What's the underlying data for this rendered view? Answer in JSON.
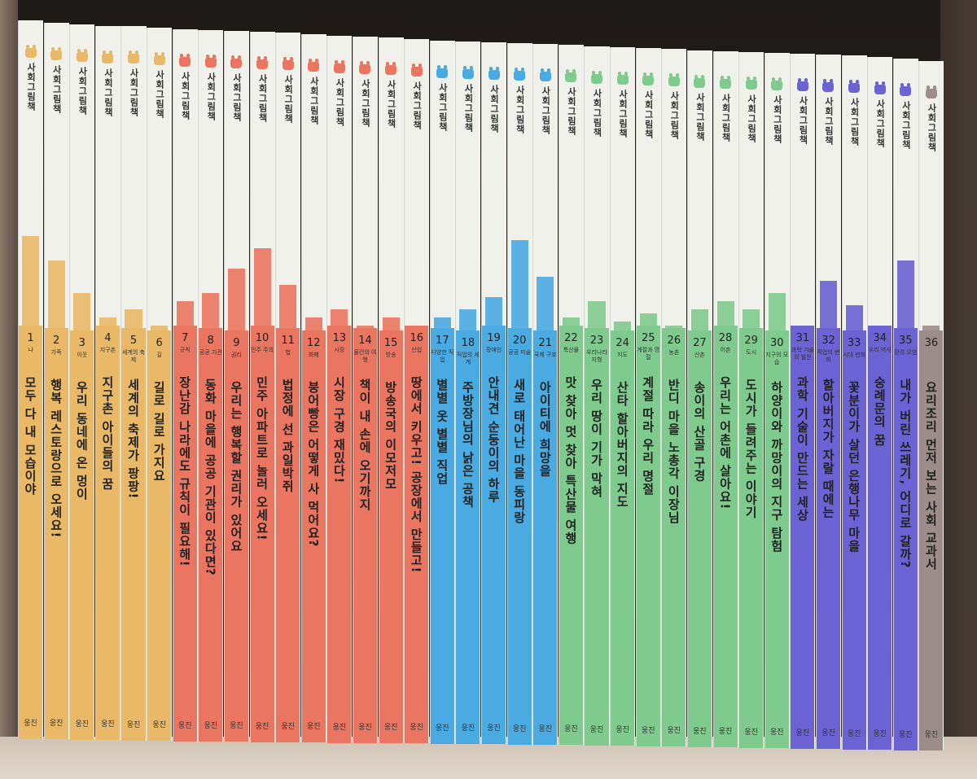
{
  "series_label": "사회그림책",
  "publisher": "웅진",
  "groups": [
    {
      "range": [
        1,
        6
      ],
      "color": "#e9b968"
    },
    {
      "range": [
        7,
        16
      ],
      "color": "#ea7560"
    },
    {
      "range": [
        17,
        21
      ],
      "color": "#4aaae2"
    },
    {
      "range": [
        22,
        30
      ],
      "color": "#7fcb8e"
    },
    {
      "range": [
        31,
        35
      ],
      "color": "#6b62d3"
    },
    {
      "range": [
        36,
        36
      ],
      "color": "#9c8c8a"
    }
  ],
  "books": [
    {
      "number": "1",
      "subject": "나",
      "title": "모두 다 내 모습이야"
    },
    {
      "number": "2",
      "subject": "가족",
      "title": "행복 레스토랑으로 오세요!"
    },
    {
      "number": "3",
      "subject": "이웃",
      "title": "우리 동네에 온 멍이"
    },
    {
      "number": "4",
      "subject": "지구촌",
      "title": "지구촌 아이들의 꿈"
    },
    {
      "number": "5",
      "subject": "세계의 축제",
      "title": "세계의 축제가 팡팡!"
    },
    {
      "number": "6",
      "subject": "길",
      "title": "길로 길로 가지요"
    },
    {
      "number": "7",
      "subject": "규칙",
      "title": "장난감 나라에도 규칙이 필요해!"
    },
    {
      "number": "8",
      "subject": "공공 기관",
      "title": "동화 마을에 공공 기관이 있다면?"
    },
    {
      "number": "9",
      "subject": "권리",
      "title": "우리는 행복할 권리가 있어요"
    },
    {
      "number": "10",
      "subject": "민주 주의",
      "title": "민주 아파트로 놀러 오세요!"
    },
    {
      "number": "11",
      "subject": "법",
      "title": "법정에 선 과일박쥐"
    },
    {
      "number": "12",
      "subject": "화폐",
      "title": "붕어빵은 어떻게 사 먹어요?"
    },
    {
      "number": "13",
      "subject": "시장",
      "title": "시장 구경 재밌다!"
    },
    {
      "number": "14",
      "subject": "물건의 여행",
      "title": "책이 내 손에 오기까지"
    },
    {
      "number": "15",
      "subject": "방송",
      "title": "방송국의 이모저모"
    },
    {
      "number": "16",
      "subject": "산업",
      "title": "땅에서 키우고! 공장에서 만들고!"
    },
    {
      "number": "17",
      "subject": "다양한 직업",
      "title": "별별 옷 별별 직업"
    },
    {
      "number": "18",
      "subject": "직업의 세계",
      "title": "주방장님의 낡은 공책"
    },
    {
      "number": "19",
      "subject": "장애인",
      "title": "안내견 순둥이의 하루"
    },
    {
      "number": "20",
      "subject": "공공 미술",
      "title": "새로 태어난 마을 동피랑"
    },
    {
      "number": "21",
      "subject": "국제 구호",
      "title": "아이티에 희망을"
    },
    {
      "number": "22",
      "subject": "특산물",
      "title": "맛 찾아 멋 찾아 특산물 여행"
    },
    {
      "number": "23",
      "subject": "우리나라 지형",
      "title": "우리 땅이 기가 막혀"
    },
    {
      "number": "24",
      "subject": "지도",
      "title": "산타 할아버지의 지도"
    },
    {
      "number": "25",
      "subject": "계절과 명절",
      "title": "계절 따라 우리 명절"
    },
    {
      "number": "26",
      "subject": "농촌",
      "title": "반디 마을 노총각 이장님"
    },
    {
      "number": "27",
      "subject": "산촌",
      "title": "송이의 산골 구경"
    },
    {
      "number": "28",
      "subject": "어촌",
      "title": "우리는 어촌에 살아요!"
    },
    {
      "number": "29",
      "subject": "도시",
      "title": "도시가 들려주는 이야기"
    },
    {
      "number": "30",
      "subject": "지구의 모습",
      "title": "하양이와 까망이의 지구 탐험"
    },
    {
      "number": "31",
      "subject": "과학 기술의 발전",
      "title": "과학 기술이 만드는 세상"
    },
    {
      "number": "32",
      "subject": "직업의 변화",
      "title": "할아버지가 자랄 때에는"
    },
    {
      "number": "33",
      "subject": "시대 변화",
      "title": "꽃분이가 살던 은행나무 마을"
    },
    {
      "number": "34",
      "subject": "우리 역사",
      "title": "숭례문의 꿈"
    },
    {
      "number": "35",
      "subject": "환경 오염",
      "title": "내가 버린 쓰레기, 어디로 갈까?"
    },
    {
      "number": "36",
      "subject": "",
      "title": "요리조리 먼저 보는 사회 교과서"
    }
  ]
}
